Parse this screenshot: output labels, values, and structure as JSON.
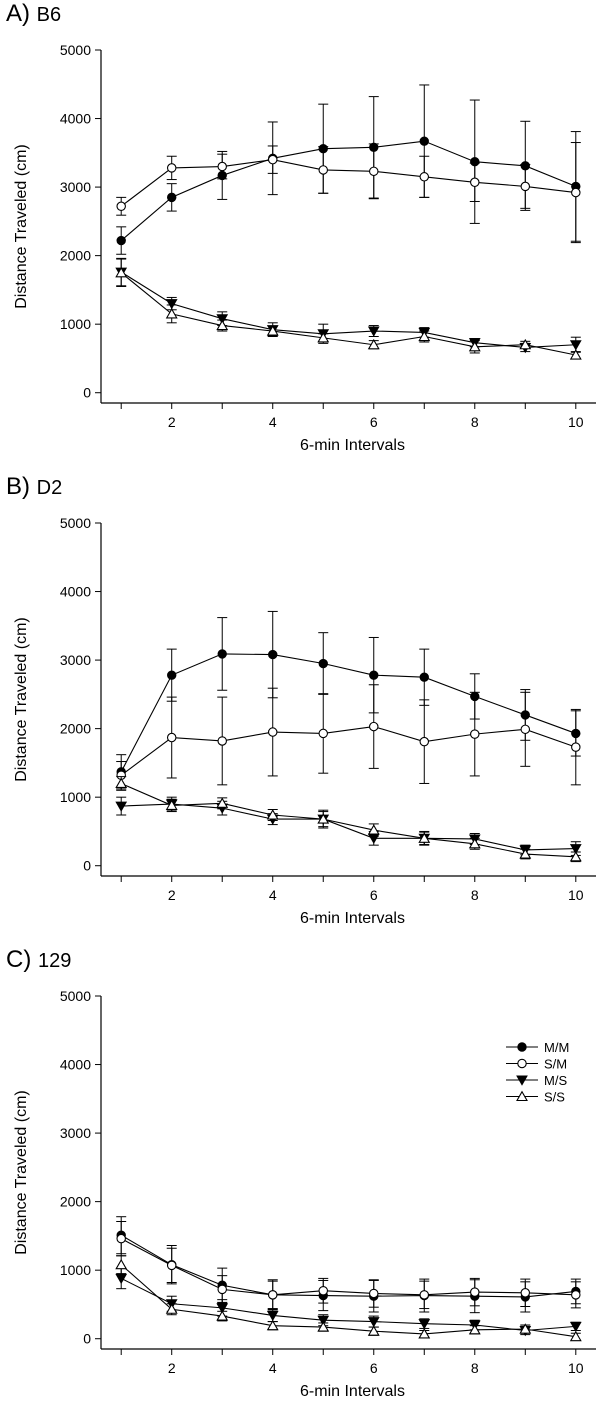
{
  "colors": {
    "ink": "#000000",
    "open_fill": "#ffffff",
    "background": "#ffffff"
  },
  "chart_data": [
    {
      "type": "line",
      "panel_letter": "A)",
      "title": "B6",
      "xlabel": "6-min Intervals",
      "ylabel": "Distance Traveled (cm)",
      "x": [
        1,
        2,
        3,
        4,
        5,
        6,
        7,
        8,
        9,
        10
      ],
      "x_ticks": [
        2,
        4,
        6,
        8,
        10
      ],
      "y_ticks": [
        0,
        1000,
        2000,
        3000,
        4000,
        5000
      ],
      "xlim": [
        0.6,
        10.4
      ],
      "ylim": [
        -150,
        5000
      ],
      "grid": false,
      "legend": [],
      "series": [
        {
          "name": "M/M",
          "marker": "filled-circle",
          "values": [
            2220,
            2850,
            3170,
            3420,
            3560,
            3580,
            3670,
            3370,
            3310,
            3010
          ],
          "errors": [
            200,
            200,
            350,
            530,
            650,
            740,
            820,
            900,
            650,
            800
          ]
        },
        {
          "name": "S/M",
          "marker": "open-circle",
          "values": [
            2720,
            3280,
            3300,
            3400,
            3250,
            3230,
            3150,
            3070,
            3010,
            2920
          ],
          "errors": [
            130,
            170,
            180,
            200,
            340,
            400,
            300,
            280,
            320,
            730
          ]
        },
        {
          "name": "M/S",
          "marker": "filled-triangle-down",
          "values": [
            1760,
            1300,
            1080,
            920,
            860,
            900,
            880,
            730,
            660,
            700
          ],
          "errors": [
            200,
            90,
            100,
            100,
            140,
            80,
            70,
            60,
            60,
            110
          ]
        },
        {
          "name": "S/S",
          "marker": "open-triangle-up",
          "values": [
            1750,
            1150,
            980,
            900,
            800,
            700,
            820,
            670,
            700,
            550
          ],
          "errors": [
            200,
            130,
            80,
            70,
            60,
            60,
            80,
            90,
            50,
            50
          ]
        }
      ]
    },
    {
      "type": "line",
      "panel_letter": "B)",
      "title": "D2",
      "xlabel": "6-min Intervals",
      "ylabel": "Distance Traveled (cm)",
      "x": [
        1,
        2,
        3,
        4,
        5,
        6,
        7,
        8,
        9,
        10
      ],
      "x_ticks": [
        2,
        4,
        6,
        8,
        10
      ],
      "y_ticks": [
        0,
        1000,
        2000,
        3000,
        4000,
        5000
      ],
      "xlim": [
        0.6,
        10.4
      ],
      "ylim": [
        -150,
        5000
      ],
      "grid": false,
      "legend": [],
      "series": [
        {
          "name": "M/M",
          "marker": "filled-circle",
          "values": [
            1370,
            2780,
            3090,
            3080,
            2950,
            2780,
            2750,
            2470,
            2200,
            1930
          ],
          "errors": [
            250,
            380,
            530,
            630,
            450,
            550,
            410,
            330,
            370,
            330
          ]
        },
        {
          "name": "S/M",
          "marker": "open-circle",
          "values": [
            1320,
            1870,
            1820,
            1950,
            1930,
            2030,
            1810,
            1920,
            1990,
            1730
          ],
          "errors": [
            200,
            590,
            640,
            640,
            580,
            610,
            610,
            610,
            540,
            550
          ]
        },
        {
          "name": "M/S",
          "marker": "filled-triangle-down",
          "values": [
            870,
            900,
            840,
            680,
            680,
            400,
            400,
            390,
            230,
            250
          ],
          "errors": [
            130,
            100,
            100,
            80,
            110,
            100,
            100,
            80,
            70,
            100
          ]
        },
        {
          "name": "S/S",
          "marker": "open-triangle-up",
          "values": [
            1200,
            880,
            910,
            740,
            680,
            520,
            400,
            320,
            170,
            130
          ],
          "errors": [
            100,
            90,
            80,
            80,
            130,
            90,
            90,
            80,
            70,
            70
          ]
        }
      ]
    },
    {
      "type": "line",
      "panel_letter": "C)",
      "title": "129",
      "xlabel": "6-min Intervals",
      "ylabel": "Distance Traveled (cm)",
      "x": [
        1,
        2,
        3,
        4,
        5,
        6,
        7,
        8,
        9,
        10
      ],
      "x_ticks": [
        2,
        4,
        6,
        8,
        10
      ],
      "y_ticks": [
        0,
        1000,
        2000,
        3000,
        4000,
        5000
      ],
      "xlim": [
        0.6,
        10.4
      ],
      "ylim": [
        -150,
        5000
      ],
      "grid": false,
      "legend": [
        "M/M",
        "S/M",
        "M/S",
        "S/S"
      ],
      "legend_position": "top-right",
      "series": [
        {
          "name": "M/M",
          "marker": "filled-circle",
          "values": [
            1510,
            1080,
            780,
            640,
            630,
            620,
            630,
            620,
            610,
            690
          ],
          "errors": [
            270,
            280,
            250,
            220,
            220,
            230,
            240,
            240,
            220,
            180
          ]
        },
        {
          "name": "S/M",
          "marker": "open-circle",
          "values": [
            1460,
            1070,
            720,
            640,
            700,
            660,
            640,
            680,
            670,
            640
          ],
          "errors": [
            250,
            250,
            200,
            200,
            180,
            200,
            200,
            200,
            200,
            190
          ]
        },
        {
          "name": "M/S",
          "marker": "filled-triangle-down",
          "values": [
            880,
            510,
            450,
            340,
            270,
            250,
            220,
            200,
            120,
            180
          ],
          "errors": [
            150,
            110,
            120,
            90,
            80,
            80,
            70,
            70,
            60,
            60
          ]
        },
        {
          "name": "S/S",
          "marker": "open-triangle-up",
          "values": [
            1080,
            430,
            330,
            190,
            170,
            110,
            70,
            130,
            140,
            30
          ],
          "errors": [
            130,
            80,
            70,
            60,
            60,
            60,
            50,
            60,
            60,
            50
          ]
        }
      ]
    }
  ]
}
